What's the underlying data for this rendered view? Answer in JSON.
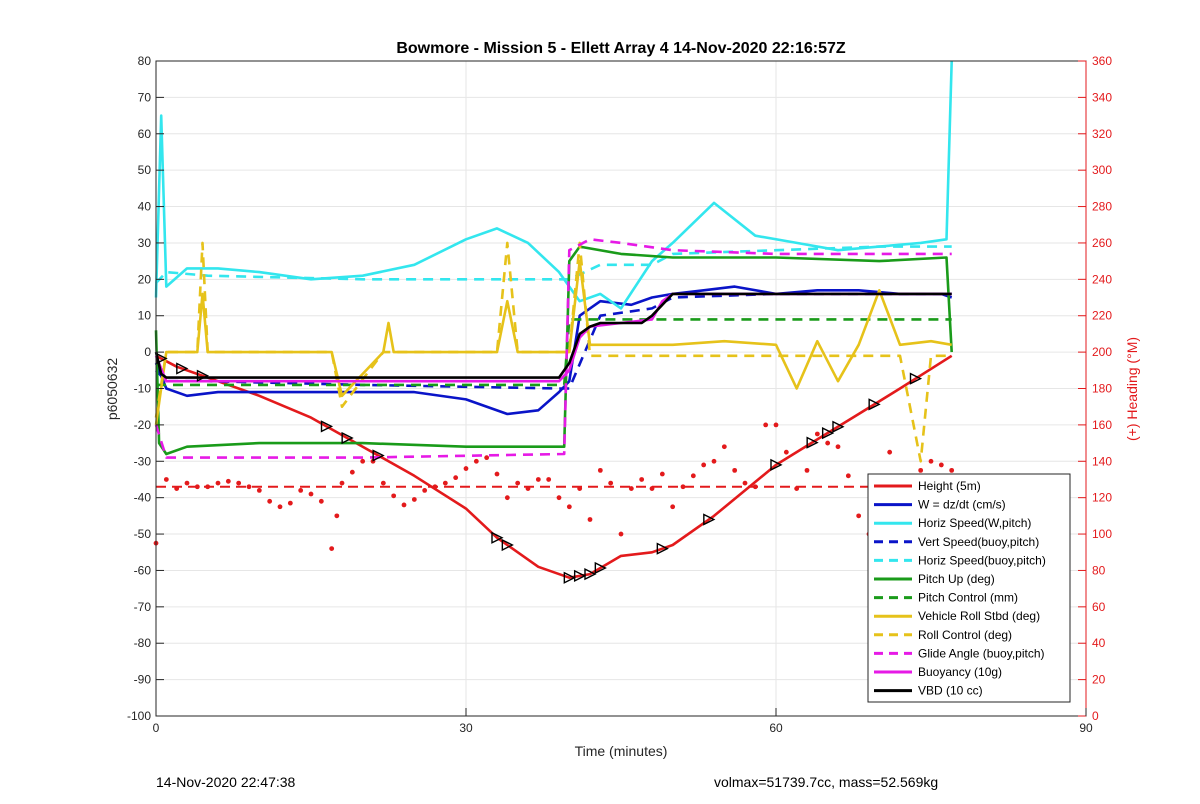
{
  "footer": {
    "left": "14-Nov-2020 22:47:38",
    "right": "volmax=51739.7cc, mass=52.569kg"
  },
  "colors": {
    "red": "#e31a1c",
    "blue": "#0a14c8",
    "cyan": "#33e6ee",
    "green": "#1a9b1a",
    "yellow": "#e6c21a",
    "magenta": "#e61ae6",
    "black": "#000000"
  },
  "chart_data": {
    "type": "line",
    "title": "Bowmore - Mission 5 - Ellett Array 4 14-Nov-2020 22:16:57Z",
    "xlabel": "Time (minutes)",
    "ylabel": "p6050632",
    "y2label": "(+) Heading (°M)",
    "xlim": [
      0,
      90
    ],
    "ylim": [
      -100,
      80
    ],
    "y2lim": [
      0,
      360
    ],
    "xticks": [
      0,
      30,
      60,
      90
    ],
    "yticks": [
      -100,
      -90,
      -80,
      -70,
      -60,
      -50,
      -40,
      -30,
      -20,
      -10,
      0,
      10,
      20,
      30,
      40,
      50,
      60,
      70,
      80
    ],
    "y2ticks": [
      0,
      20,
      40,
      60,
      80,
      100,
      120,
      140,
      160,
      180,
      200,
      220,
      240,
      260,
      280,
      300,
      320,
      340,
      360
    ],
    "grid": true,
    "legend_position": "lower-right",
    "series": [
      {
        "name": "Height (5m)",
        "color": "#e31a1c",
        "style": "solid",
        "x": [
          0,
          2,
          5,
          10,
          15,
          20,
          25,
          30,
          33,
          37,
          40,
          42,
          45,
          48,
          50,
          54,
          60,
          64,
          68,
          72,
          77
        ],
        "y": [
          -1,
          -4,
          -7,
          -12,
          -18,
          -26,
          -34,
          -43,
          -51,
          -59,
          -62,
          -61,
          -56,
          -55,
          -53,
          -45,
          -31,
          -24,
          -17,
          -10,
          -1
        ]
      },
      {
        "name": "W = dz/dt (cm/s)",
        "color": "#0a14c8",
        "style": "solid",
        "x": [
          0,
          1,
          3,
          6,
          10,
          15,
          20,
          25,
          30,
          34,
          37,
          39,
          40,
          41,
          43,
          46,
          48,
          50,
          53,
          56,
          60,
          64,
          68,
          72,
          76,
          77
        ],
        "y": [
          -3,
          -10,
          -12,
          -11,
          -11,
          -11,
          -11,
          -11,
          -13,
          -17,
          -16,
          -11,
          -8,
          10,
          14,
          13,
          15,
          16,
          17,
          18,
          16,
          17,
          17,
          16,
          16,
          15
        ]
      },
      {
        "name": "Horiz Speed(W,pitch)",
        "color": "#33e6ee",
        "style": "solid",
        "x": [
          0,
          0.5,
          1,
          3,
          6,
          10,
          15,
          20,
          25,
          30,
          33,
          36,
          39,
          40,
          41,
          43,
          45,
          48,
          50,
          54,
          58,
          62,
          66,
          70,
          74,
          76.5,
          77
        ],
        "y": [
          15,
          65,
          18,
          23,
          23,
          22,
          20,
          21,
          24,
          31,
          34,
          30,
          22,
          18,
          14,
          16,
          12,
          25,
          30,
          41,
          32,
          30,
          28,
          29,
          30,
          31,
          80
        ]
      },
      {
        "name": "Vert Speed(buoy,pitch)",
        "color": "#0a14c8",
        "style": "dashed",
        "x": [
          0,
          1,
          5,
          20,
          39,
          40,
          43,
          48,
          50,
          60,
          70,
          77
        ],
        "y": [
          -5,
          -8,
          -8,
          -9,
          -10,
          -10,
          10,
          12,
          15,
          16,
          16,
          16
        ]
      },
      {
        "name": "Horiz Speed(buoy,pitch)",
        "color": "#33e6ee",
        "style": "dashed",
        "x": [
          0,
          1,
          5,
          20,
          30,
          39,
          40,
          43,
          48,
          50,
          60,
          70,
          77
        ],
        "y": [
          19,
          22,
          21,
          20,
          20,
          20,
          20,
          24,
          24,
          27,
          28,
          29,
          29
        ]
      },
      {
        "name": "Pitch Up (deg)",
        "color": "#1a9b1a",
        "style": "solid",
        "x": [
          0,
          0.3,
          1,
          3,
          10,
          20,
          30,
          39.5,
          40,
          41,
          45,
          50,
          60,
          70,
          76.5,
          77
        ],
        "y": [
          6,
          -25,
          -28,
          -26,
          -25,
          -25,
          -26,
          -26,
          25,
          29,
          27,
          26,
          26,
          25,
          26,
          0
        ]
      },
      {
        "name": "Pitch Control (mm)",
        "color": "#1a9b1a",
        "style": "dashed",
        "x": [
          0,
          1,
          20,
          39.5,
          40,
          45,
          50,
          60,
          70,
          77
        ],
        "y": [
          -9,
          -9,
          -9,
          -9,
          9,
          9,
          9,
          9,
          9,
          9
        ]
      },
      {
        "name": "Vehicle Roll Stbd (deg)",
        "color": "#e6c21a",
        "style": "solid",
        "x": [
          0,
          1,
          4,
          4.5,
          5,
          10,
          17,
          18,
          22,
          22.5,
          23,
          33,
          34,
          35,
          40,
          41,
          42,
          50,
          55,
          60,
          62,
          64,
          66,
          68,
          70,
          72,
          75,
          77
        ],
        "y": [
          -20,
          0,
          0,
          16,
          0,
          0,
          0,
          -12,
          0,
          8,
          0,
          0,
          14,
          0,
          0,
          25,
          2,
          2,
          3,
          2,
          -10,
          3,
          -8,
          2,
          17,
          2,
          3,
          2
        ]
      },
      {
        "name": "Roll Control (deg)",
        "color": "#e6c21a",
        "style": "dashed",
        "x": [
          0,
          1,
          4,
          4.5,
          5,
          17,
          18,
          22,
          23,
          33,
          34,
          35,
          40,
          41,
          42,
          50,
          55,
          60,
          64,
          68,
          72,
          74,
          75,
          77
        ],
        "y": [
          -18,
          0,
          0,
          30,
          0,
          0,
          -15,
          0,
          0,
          0,
          30,
          0,
          0,
          30,
          -1,
          -1,
          -1,
          -1,
          -1,
          -1,
          -1,
          -30,
          -1,
          -1
        ]
      },
      {
        "name": "Glide Angle (buoy,pitch)",
        "color": "#e61ae6",
        "style": "dashed",
        "x": [
          0,
          1,
          5,
          20,
          39.5,
          40,
          42,
          45,
          50,
          60,
          70,
          77
        ],
        "y": [
          -20,
          -29,
          -29,
          -29,
          -28,
          28,
          31,
          30,
          28,
          27,
          27,
          27
        ]
      },
      {
        "name": "Buoyancy (10g)",
        "color": "#e61ae6",
        "style": "solid",
        "x": [
          0,
          1,
          39,
          40,
          41,
          42,
          45,
          48,
          49,
          50,
          60,
          77
        ],
        "y": [
          -1,
          -8,
          -8,
          -5,
          4,
          7,
          8,
          9,
          14,
          16,
          16,
          16
        ]
      },
      {
        "name": "VBD (10 cc)",
        "color": "#000000",
        "style": "solid",
        "x": [
          0,
          0.5,
          1,
          39,
          40,
          41,
          42,
          43,
          45,
          47,
          48,
          49,
          50,
          60,
          77
        ],
        "y": [
          0,
          -6,
          -7,
          -7,
          -3,
          5,
          7,
          8,
          8,
          8,
          10,
          13,
          16,
          16,
          16
        ]
      }
    ],
    "heading_reference": {
      "axis": "y2",
      "value": 126,
      "color": "#e31a1c",
      "style": "dashed"
    },
    "heading_points": {
      "axis": "y2",
      "color": "#e31a1c",
      "x": [
        0,
        1,
        2,
        3,
        4,
        5,
        6,
        7,
        8,
        9,
        10,
        11,
        12,
        13,
        14,
        15,
        16,
        17,
        17.5,
        18,
        19,
        20,
        21,
        22,
        23,
        24,
        25,
        26,
        27,
        28,
        29,
        30,
        31,
        32,
        33,
        34,
        35,
        36,
        37,
        38,
        39,
        40,
        41,
        42,
        43,
        44,
        45,
        46,
        47,
        48,
        49,
        50,
        51,
        52,
        53,
        54,
        55,
        56,
        57,
        58,
        59,
        60,
        61,
        62,
        63,
        64,
        65,
        66,
        67,
        68,
        69,
        70,
        71,
        72,
        73,
        74,
        75,
        76,
        77
      ],
      "y": [
        95,
        130,
        125,
        128,
        126,
        126,
        128,
        129,
        128,
        126,
        124,
        118,
        115,
        117,
        124,
        122,
        118,
        92,
        110,
        128,
        134,
        140,
        140,
        128,
        121,
        116,
        119,
        124,
        126,
        128,
        131,
        136,
        140,
        142,
        133,
        120,
        128,
        125,
        130,
        130,
        120,
        115,
        125,
        108,
        135,
        128,
        100,
        125,
        130,
        125,
        133,
        115,
        126,
        132,
        138,
        140,
        148,
        135,
        128,
        126,
        160,
        160,
        145,
        125,
        135,
        155,
        150,
        148,
        132,
        110,
        100,
        120,
        145,
        130,
        125,
        135,
        140,
        138,
        135
      ]
    }
  }
}
